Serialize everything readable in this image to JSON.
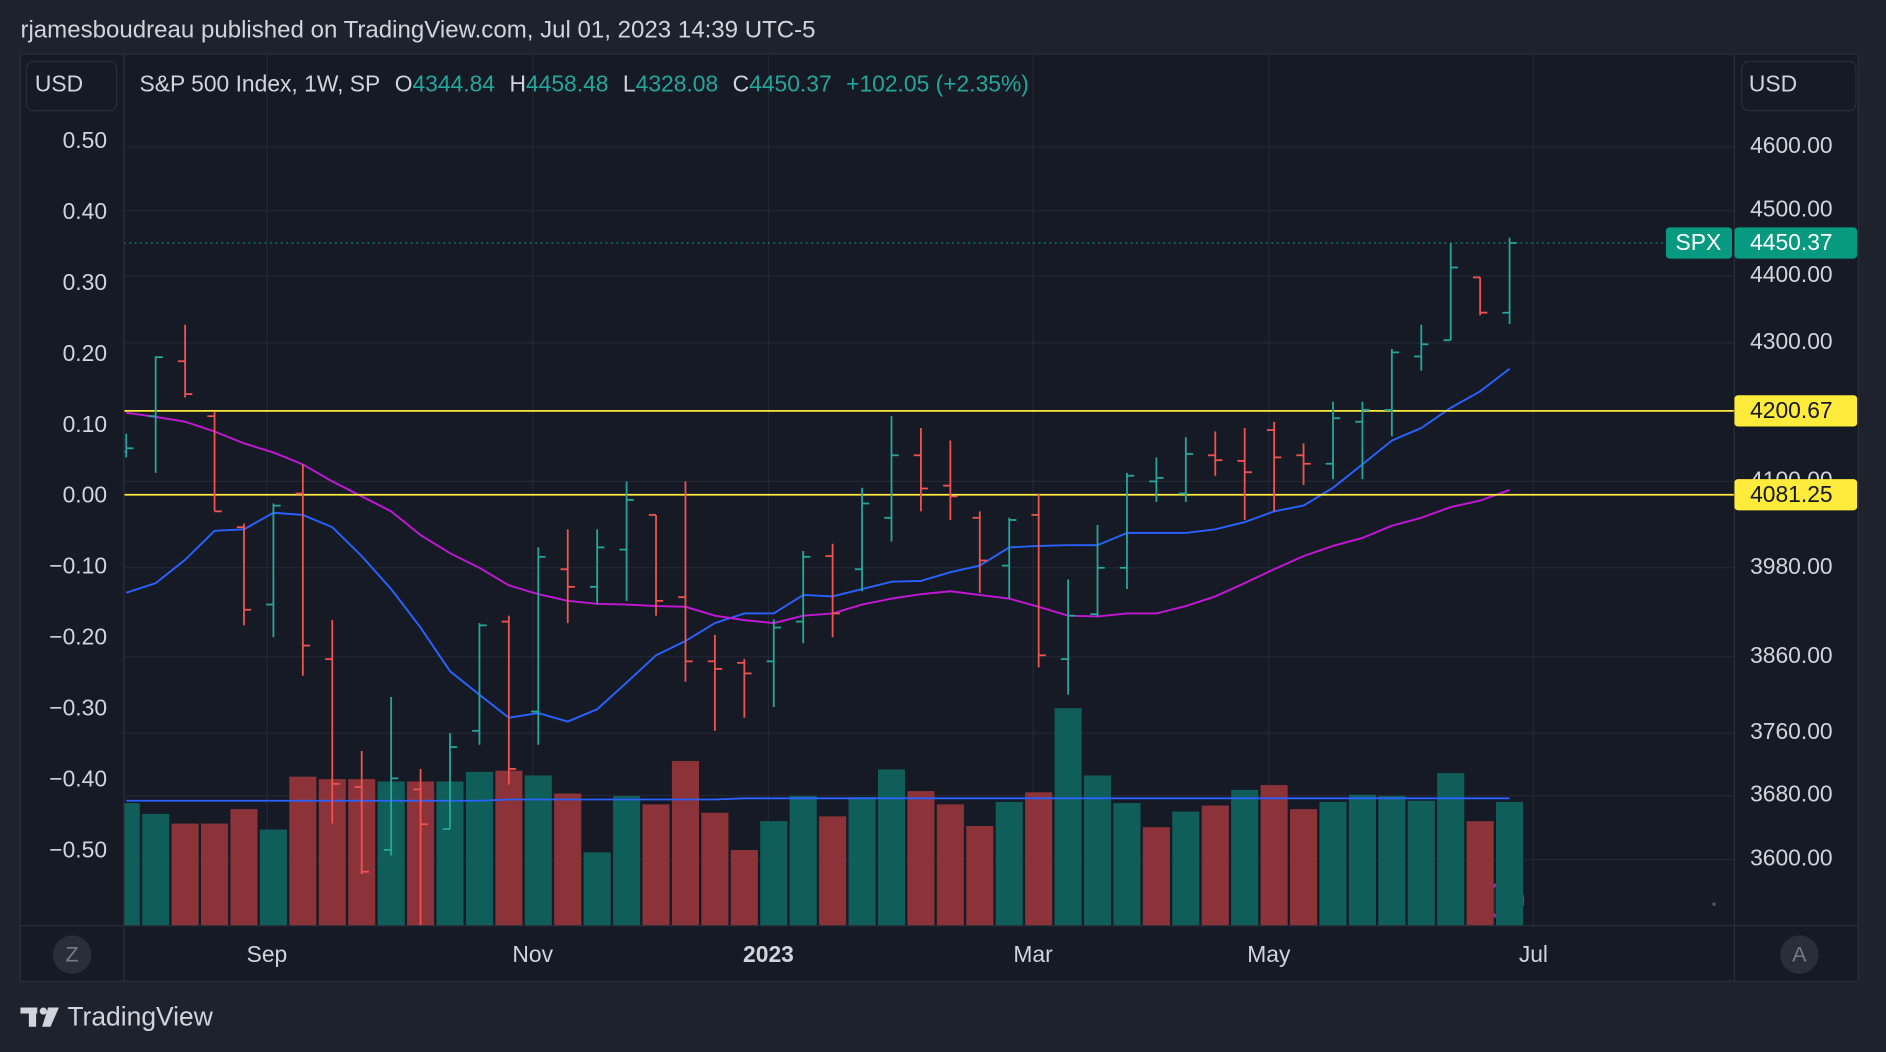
{
  "chart_data": {
    "type": "ohlc",
    "publisher": "rjamesboudreau published on TradingView.com, Jul 01, 2023 14:39 UTC-5",
    "title": "S&P 500 Index, 1W, SP",
    "currency": "USD",
    "legend": {
      "open_key": "O",
      "high_key": "H",
      "low_key": "L",
      "close_key": "C",
      "change": "+102.05 (+2.35%)"
    },
    "open": [
      4142,
      4193,
      4273,
      4193,
      4036,
      3930,
      4083,
      3857,
      3691,
      3612,
      3688,
      3638,
      3763,
      3907,
      3788,
      3978,
      3954,
      4005,
      4053,
      3940,
      3854,
      3852,
      3854,
      3907,
      3996,
      3978,
      4049,
      4137,
      4094,
      4049,
      3983,
      4053,
      3857,
      3917,
      3980,
      4100,
      4083,
      4137,
      4129,
      4173,
      4137,
      4125,
      4185,
      4202,
      4280,
      4304,
      4398,
      4344.84
    ],
    "high": [
      4168,
      4280,
      4327,
      4200,
      4041,
      4069,
      4124,
      3909,
      3737,
      3807,
      3714,
      3760,
      3905,
      3915,
      4008,
      4033,
      4033,
      4100,
      4053,
      4100,
      3889,
      3857,
      3910,
      4003,
      4013,
      4091,
      4193,
      4176,
      4158,
      4058,
      4049,
      4083,
      3964,
      4039,
      4112,
      4134,
      4163,
      4171,
      4176,
      4185,
      4154,
      4214,
      4214,
      4291,
      4327,
      4450,
      4398,
      4458.48
    ],
    "low": [
      4134,
      4112,
      4220,
      4058,
      3902,
      3886,
      3835,
      3645,
      3582,
      3605,
      3519,
      3638,
      3745,
      3694,
      3745,
      3905,
      3931,
      3935,
      3915,
      3827,
      3763,
      3780,
      3794,
      3878,
      3886,
      3948,
      4016,
      4058,
      4046,
      3946,
      3938,
      3846,
      3810,
      3914,
      3951,
      4071,
      4071,
      4108,
      4046,
      4058,
      4095,
      4103,
      4103,
      4164,
      4259,
      4304,
      4341,
      4328.08
    ],
    "close": [
      4147,
      4279,
      4225,
      4058,
      3923,
      4066,
      3875,
      3695,
      3585,
      3702,
      3644,
      3742,
      3902,
      3714,
      3995,
      3954,
      4008,
      4074,
      3935,
      3854,
      3844,
      3838,
      3899,
      3995,
      3918,
      4069,
      4137,
      4090,
      4079,
      3990,
      4046,
      3862,
      3915,
      3980,
      4108,
      4105,
      4139,
      4130,
      4113,
      4134,
      4125,
      4190,
      4202,
      4286,
      4298,
      4413,
      4345,
      4450.37
    ],
    "up_color": "#26a69a",
    "down_color": "#ef5350",
    "moving_averages": [
      {
        "color": "#2962ff",
        "values": [
          3946,
          3959,
          3991,
          4031,
          4033,
          4056,
          4053,
          4036,
          3996,
          3951,
          3899,
          3841,
          3810,
          3780,
          3786,
          3775,
          3791,
          3826,
          3862,
          3881,
          3905,
          3918,
          3918,
          3943,
          3941,
          3951,
          3961,
          3962,
          3974,
          3983,
          4008,
          4010,
          4011,
          4011,
          4028,
          4028,
          4028,
          4033,
          4043,
          4058,
          4066,
          4091,
          4124,
          4158,
          4176,
          4205,
          4229,
          4262
        ]
      },
      {
        "color": "#c218d6",
        "values": [
          4198,
          4192,
          4185,
          4171,
          4154,
          4141,
          4124,
          4100,
          4079,
          4058,
          4025,
          4000,
          3980,
          3956,
          3944,
          3935,
          3931,
          3930,
          3928,
          3927,
          3915,
          3909,
          3905,
          3915,
          3918,
          3930,
          3938,
          3944,
          3948,
          3943,
          3938,
          3927,
          3915,
          3914,
          3918,
          3918,
          3928,
          3941,
          3959,
          3978,
          3996,
          4010,
          4021,
          4038,
          4049,
          4064,
          4073,
          4088
        ]
      }
    ],
    "volume": {
      "ylim": [
        0,
        200
      ],
      "values": [
        102,
        93,
        85,
        85,
        97,
        80,
        124,
        122,
        122,
        120,
        120,
        120,
        128,
        129,
        125,
        110,
        61,
        108,
        101,
        137,
        94,
        63,
        87,
        108,
        91,
        107,
        130,
        112,
        101,
        83,
        103,
        111,
        181,
        125,
        102,
        82,
        95,
        100,
        113,
        117,
        97,
        103,
        109,
        108,
        104,
        127,
        87,
        103
      ],
      "colors": [
        "#0f5e5a",
        "#0f5e5a",
        "#8b3338",
        "#8b3338",
        "#8b3338",
        "#0f5e5a",
        "#8b3338",
        "#8b3338",
        "#8b3338",
        "#0f5e5a",
        "#8b3338",
        "#0f5e5a",
        "#0f5e5a",
        "#8b3338",
        "#0f5e5a",
        "#8b3338",
        "#0f5e5a",
        "#0f5e5a",
        "#8b3338",
        "#8b3338",
        "#8b3338",
        "#8b3338",
        "#0f5e5a",
        "#0f5e5a",
        "#8b3338",
        "#0f5e5a",
        "#0f5e5a",
        "#8b3338",
        "#8b3338",
        "#8b3338",
        "#0f5e5a",
        "#8b3338",
        "#0f5e5a",
        "#0f5e5a",
        "#0f5e5a",
        "#8b3338",
        "#0f5e5a",
        "#8b3338",
        "#0f5e5a",
        "#8b3338",
        "#8b3338",
        "#0f5e5a",
        "#0f5e5a",
        "#0f5e5a",
        "#0f5e5a",
        "#0f5e5a",
        "#8b3338",
        "#0f5e5a"
      ],
      "ma": {
        "color": "#2962ff",
        "values": [
          104,
          104,
          104,
          104,
          104,
          104,
          104,
          104,
          104,
          104,
          104,
          104,
          104,
          105,
          105,
          105,
          105,
          105,
          105,
          105,
          105,
          106,
          106,
          106,
          106,
          106,
          106,
          106,
          106,
          106,
          106,
          106,
          106,
          106,
          106,
          106,
          106,
          106,
          106,
          106,
          106,
          106,
          106,
          106,
          106,
          106,
          106,
          106
        ]
      }
    },
    "log_scale": true,
    "ylim": [
      3519,
      4749
    ],
    "yticks": [
      {
        "value": 4600,
        "label": "4600.00"
      },
      {
        "value": 4500,
        "label": "4500.00"
      },
      {
        "value": 4400,
        "label": "4400.00"
      },
      {
        "value": 4300,
        "label": "4300.00"
      },
      {
        "value": 4100,
        "label": "4100.00"
      },
      {
        "value": 3980,
        "label": "3980.00"
      },
      {
        "value": 3860,
        "label": "3860.00"
      },
      {
        "value": 3760,
        "label": "3760.00"
      },
      {
        "value": 3680,
        "label": "3680.00"
      },
      {
        "value": 3600,
        "label": "3600.00"
      }
    ],
    "y2lim": [
      -0.605,
      0.624
    ],
    "y2ticks": [
      {
        "value": 0.5,
        "label": "0.50"
      },
      {
        "value": 0.4,
        "label": "0.40"
      },
      {
        "value": 0.3,
        "label": "0.30"
      },
      {
        "value": 0.2,
        "label": "0.20"
      },
      {
        "value": 0.1,
        "label": "0.10"
      },
      {
        "value": 0,
        "label": "0.00"
      },
      {
        "value": -0.1,
        "label": "−0.10"
      },
      {
        "value": -0.2,
        "label": "−0.20"
      },
      {
        "value": -0.3,
        "label": "−0.30"
      },
      {
        "value": -0.4,
        "label": "−0.40"
      },
      {
        "value": -0.5,
        "label": "−0.50"
      }
    ],
    "xlim": [
      -0.08,
      54.64
    ],
    "xticks": [
      {
        "value": 4.78,
        "label": "Sep"
      },
      {
        "value": 13.81,
        "label": "Nov"
      },
      {
        "value": 21.82,
        "label": "2023",
        "bold": true
      },
      {
        "value": 30.81,
        "label": "Mar"
      },
      {
        "value": 38.82,
        "label": "May"
      },
      {
        "value": 47.81,
        "label": "Jul"
      }
    ],
    "grid": true,
    "hlines": [
      {
        "value": 4200.67,
        "color": "#ffeb3b"
      },
      {
        "value": 4081.25,
        "color": "#ffeb3b"
      }
    ],
    "last_price": {
      "symbol": "SPX",
      "color": "#089981"
    },
    "scale_buttons": [
      "Z",
      "A"
    ],
    "brand": "TradingView"
  }
}
